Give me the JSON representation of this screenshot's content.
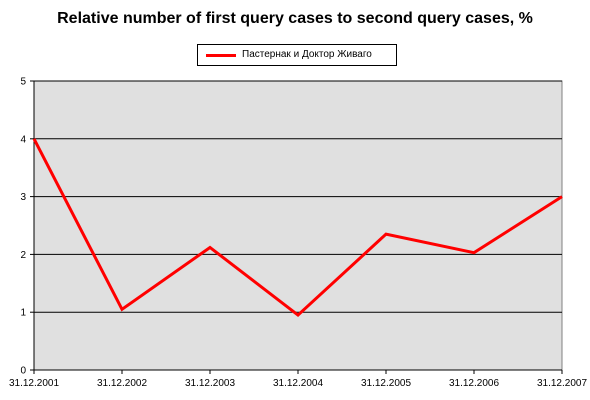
{
  "chart_data": {
    "type": "line",
    "title": "Relative number of first query cases to second query cases, %",
    "xlabel": "",
    "ylabel": "",
    "categories": [
      "31.12.2001",
      "31.12.2002",
      "31.12.2003",
      "31.12.2004",
      "31.12.2005",
      "31.12.2006",
      "31.12.2007"
    ],
    "series": [
      {
        "name": "Пастернак и Доктор Живаго",
        "values": [
          4.0,
          1.05,
          2.12,
          0.95,
          2.35,
          2.03,
          3.0
        ],
        "color": "#ff0000"
      }
    ],
    "ylim": [
      0,
      5
    ],
    "yticks": [
      "0",
      "1",
      "2",
      "3",
      "4",
      "5"
    ],
    "grid": true,
    "plot_background": "#e0e0e0",
    "legend_position": "top-center"
  }
}
